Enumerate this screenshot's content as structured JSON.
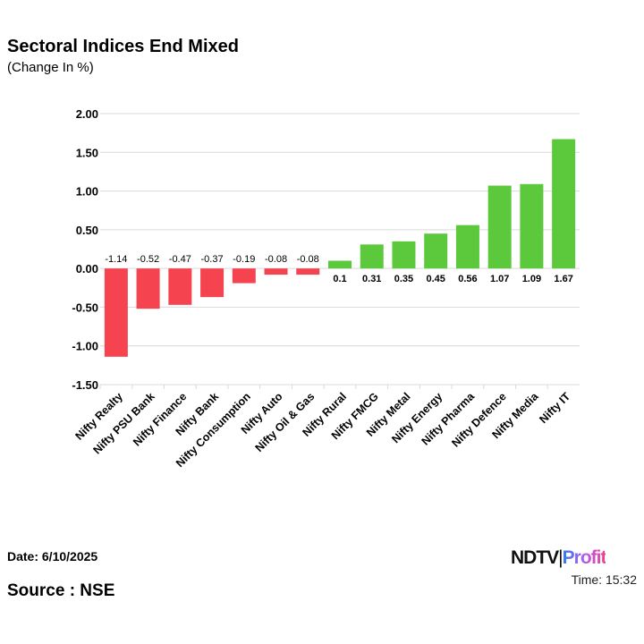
{
  "title": "Sectoral Indices End Mixed",
  "subtitle": "(Change In %)",
  "footer": {
    "date": "Date: 6/10/2025",
    "time": "Time: 15:32",
    "source": "Source : NSE",
    "logo": "NDTV Profit"
  },
  "colors": {
    "negative": "#f5444f",
    "positive": "#5cc93c",
    "grid": "#d9d9d9"
  },
  "chart_data": {
    "type": "bar",
    "title": "Sectoral Indices End Mixed",
    "ylabel": "",
    "xlabel": "",
    "ylim": [
      -1.5,
      2.0
    ],
    "yticks": [
      "2.00",
      "1.50",
      "1.00",
      "0.50",
      "0.00",
      "-0.50",
      "-1.00",
      "-1.50"
    ],
    "grid": true,
    "categories": [
      "Nifty Realty",
      "Nifty PSU Bank",
      "Nifty Finance",
      "Nifty Bank",
      "Nifty Consumption",
      "Nifty Auto",
      "Nifty Oil & Gas",
      "Nifty Rural",
      "Nifty FMCG",
      "Nifty Metal",
      "Nifty Energy",
      "Nifty Pharma",
      "Nifty Defence",
      "Nifty Media",
      "Nifty IT"
    ],
    "values": [
      -1.14,
      -0.52,
      -0.47,
      -0.37,
      -0.19,
      -0.08,
      -0.08,
      0.1,
      0.31,
      0.35,
      0.45,
      0.56,
      1.07,
      1.09,
      1.67
    ],
    "labels": [
      "-1.14",
      "-0.52",
      "-0.47",
      "-0.37",
      "-0.19",
      "-0.08",
      "-0.08",
      "0.1",
      "0.31",
      "0.35",
      "0.45",
      "0.56",
      "1.07",
      "1.09",
      "1.67"
    ]
  }
}
